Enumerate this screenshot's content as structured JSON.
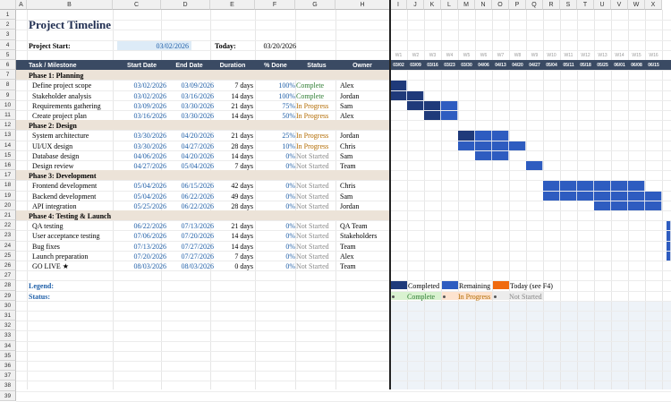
{
  "columns": [
    "A",
    "B",
    "C",
    "D",
    "E",
    "F",
    "G",
    "H",
    "I",
    "J",
    "K",
    "L",
    "M",
    "N",
    "O",
    "P",
    "Q",
    "R",
    "S",
    "T",
    "U",
    "V",
    "W",
    "X"
  ],
  "title": "Project Timeline",
  "project_start_label": "Project Start:",
  "project_start_value": "03/02/2026",
  "today_label": "Today:",
  "today_value": "03/20/2026",
  "table_headers": [
    "Task / Milestone",
    "Start Date",
    "End Date",
    "Duration",
    "% Done",
    "Status",
    "Owner"
  ],
  "weeks": [
    "W1",
    "W2",
    "W3",
    "W4",
    "W5",
    "W6",
    "W7",
    "W8",
    "W9",
    "W10",
    "W11",
    "W12",
    "W13",
    "W14",
    "W15",
    "W16"
  ],
  "week_dates": [
    "03/02",
    "03/09",
    "03/16",
    "03/23",
    "03/30",
    "04/06",
    "04/13",
    "04/20",
    "04/27",
    "05/04",
    "05/11",
    "05/18",
    "05/25",
    "06/01",
    "06/08",
    "06/15"
  ],
  "rows": [
    {
      "type": "phase",
      "task": "Phase 1: Planning"
    },
    {
      "type": "task",
      "task": "Define project scope",
      "start": "03/02/2026",
      "end": "03/09/2026",
      "duration": "7 days",
      "pct": "100%",
      "status": "Complete",
      "owner": "Alex",
      "s": 0,
      "d": 1,
      "done": 1
    },
    {
      "type": "task",
      "task": "Stakeholder analysis",
      "start": "03/02/2026",
      "end": "03/16/2026",
      "duration": "14 days",
      "pct": "100%",
      "status": "Complete",
      "owner": "Jordan",
      "s": 0,
      "d": 2,
      "done": 1
    },
    {
      "type": "task",
      "task": "Requirements gathering",
      "start": "03/09/2026",
      "end": "03/30/2026",
      "duration": "21 days",
      "pct": "75%",
      "status": "In Progress",
      "owner": "Sam",
      "s": 1,
      "d": 3,
      "done": 0.75
    },
    {
      "type": "task",
      "task": "Create project plan",
      "start": "03/16/2026",
      "end": "03/30/2026",
      "duration": "14 days",
      "pct": "50%",
      "status": "In Progress",
      "owner": "Alex",
      "s": 2,
      "d": 2,
      "done": 0.5
    },
    {
      "type": "phase",
      "task": "Phase 2: Design"
    },
    {
      "type": "task",
      "task": "System architecture",
      "start": "03/30/2026",
      "end": "04/20/2026",
      "duration": "21 days",
      "pct": "25%",
      "status": "In Progress",
      "owner": "Jordan",
      "s": 4,
      "d": 3,
      "done": 0.25
    },
    {
      "type": "task",
      "task": "UI/UX design",
      "start": "03/30/2026",
      "end": "04/27/2026",
      "duration": "28 days",
      "pct": "10%",
      "status": "In Progress",
      "owner": "Chris",
      "s": 4,
      "d": 4,
      "done": 0.1
    },
    {
      "type": "task",
      "task": "Database design",
      "start": "04/06/2026",
      "end": "04/20/2026",
      "duration": "14 days",
      "pct": "0%",
      "status": "Not Started",
      "owner": "Sam",
      "s": 5,
      "d": 2,
      "done": 0
    },
    {
      "type": "task",
      "task": "Design review",
      "start": "04/27/2026",
      "end": "05/04/2026",
      "duration": "7 days",
      "pct": "0%",
      "status": "Not Started",
      "owner": "Team",
      "s": 8,
      "d": 1,
      "done": 0
    },
    {
      "type": "phase",
      "task": "Phase 3: Development"
    },
    {
      "type": "task",
      "task": "Frontend development",
      "start": "05/04/2026",
      "end": "06/15/2026",
      "duration": "42 days",
      "pct": "0%",
      "status": "Not Started",
      "owner": "Chris",
      "s": 9,
      "d": 6,
      "done": 0
    },
    {
      "type": "task",
      "task": "Backend development",
      "start": "05/04/2026",
      "end": "06/22/2026",
      "duration": "49 days",
      "pct": "0%",
      "status": "Not Started",
      "owner": "Sam",
      "s": 9,
      "d": 7,
      "done": 0
    },
    {
      "type": "task",
      "task": "API integration",
      "start": "05/25/2026",
      "end": "06/22/2026",
      "duration": "28 days",
      "pct": "0%",
      "status": "Not Started",
      "owner": "Jordan",
      "s": 12,
      "d": 4,
      "done": 0
    },
    {
      "type": "phase",
      "task": "Phase 4: Testing & Launch"
    },
    {
      "type": "task",
      "task": "QA testing",
      "start": "06/22/2026",
      "end": "07/13/2026",
      "duration": "21 days",
      "pct": "0%",
      "status": "Not Started",
      "owner": "QA Team",
      "s": 16,
      "d": 3,
      "done": 0
    },
    {
      "type": "task",
      "task": "User acceptance testing",
      "start": "07/06/2026",
      "end": "07/20/2026",
      "duration": "14 days",
      "pct": "0%",
      "status": "Not Started",
      "owner": "Stakeholders",
      "s": 18,
      "d": 2,
      "done": 0
    },
    {
      "type": "task",
      "task": "Bug fixes",
      "start": "07/13/2026",
      "end": "07/27/2026",
      "duration": "14 days",
      "pct": "0%",
      "status": "Not Started",
      "owner": "Team",
      "s": 19,
      "d": 2,
      "done": 0
    },
    {
      "type": "task",
      "task": "Launch preparation",
      "start": "07/20/2026",
      "end": "07/27/2026",
      "duration": "7 days",
      "pct": "0%",
      "status": "Not Started",
      "owner": "Alex",
      "s": 20,
      "d": 1,
      "done": 0
    },
    {
      "type": "task",
      "task": "GO LIVE ★",
      "start": "08/03/2026",
      "end": "08/03/2026",
      "duration": "0 days",
      "pct": "0%",
      "status": "Not Started",
      "owner": "Team",
      "s": 22,
      "d": 0,
      "done": 0
    }
  ],
  "legend_label": "Legend:",
  "status_label": "Status:",
  "legend": {
    "completed": "Completed",
    "remaining": "Remaining",
    "today": "Today (see F4)"
  },
  "status_legend": {
    "complete": "Complete",
    "in_progress": "In Progress",
    "not_started": "Not Started"
  },
  "colors": {
    "completed": "#1f3a7a",
    "remaining": "#2e5cc0",
    "today": "#f06a0f",
    "header": "#3a4a63",
    "phase": "#ece3d8"
  }
}
